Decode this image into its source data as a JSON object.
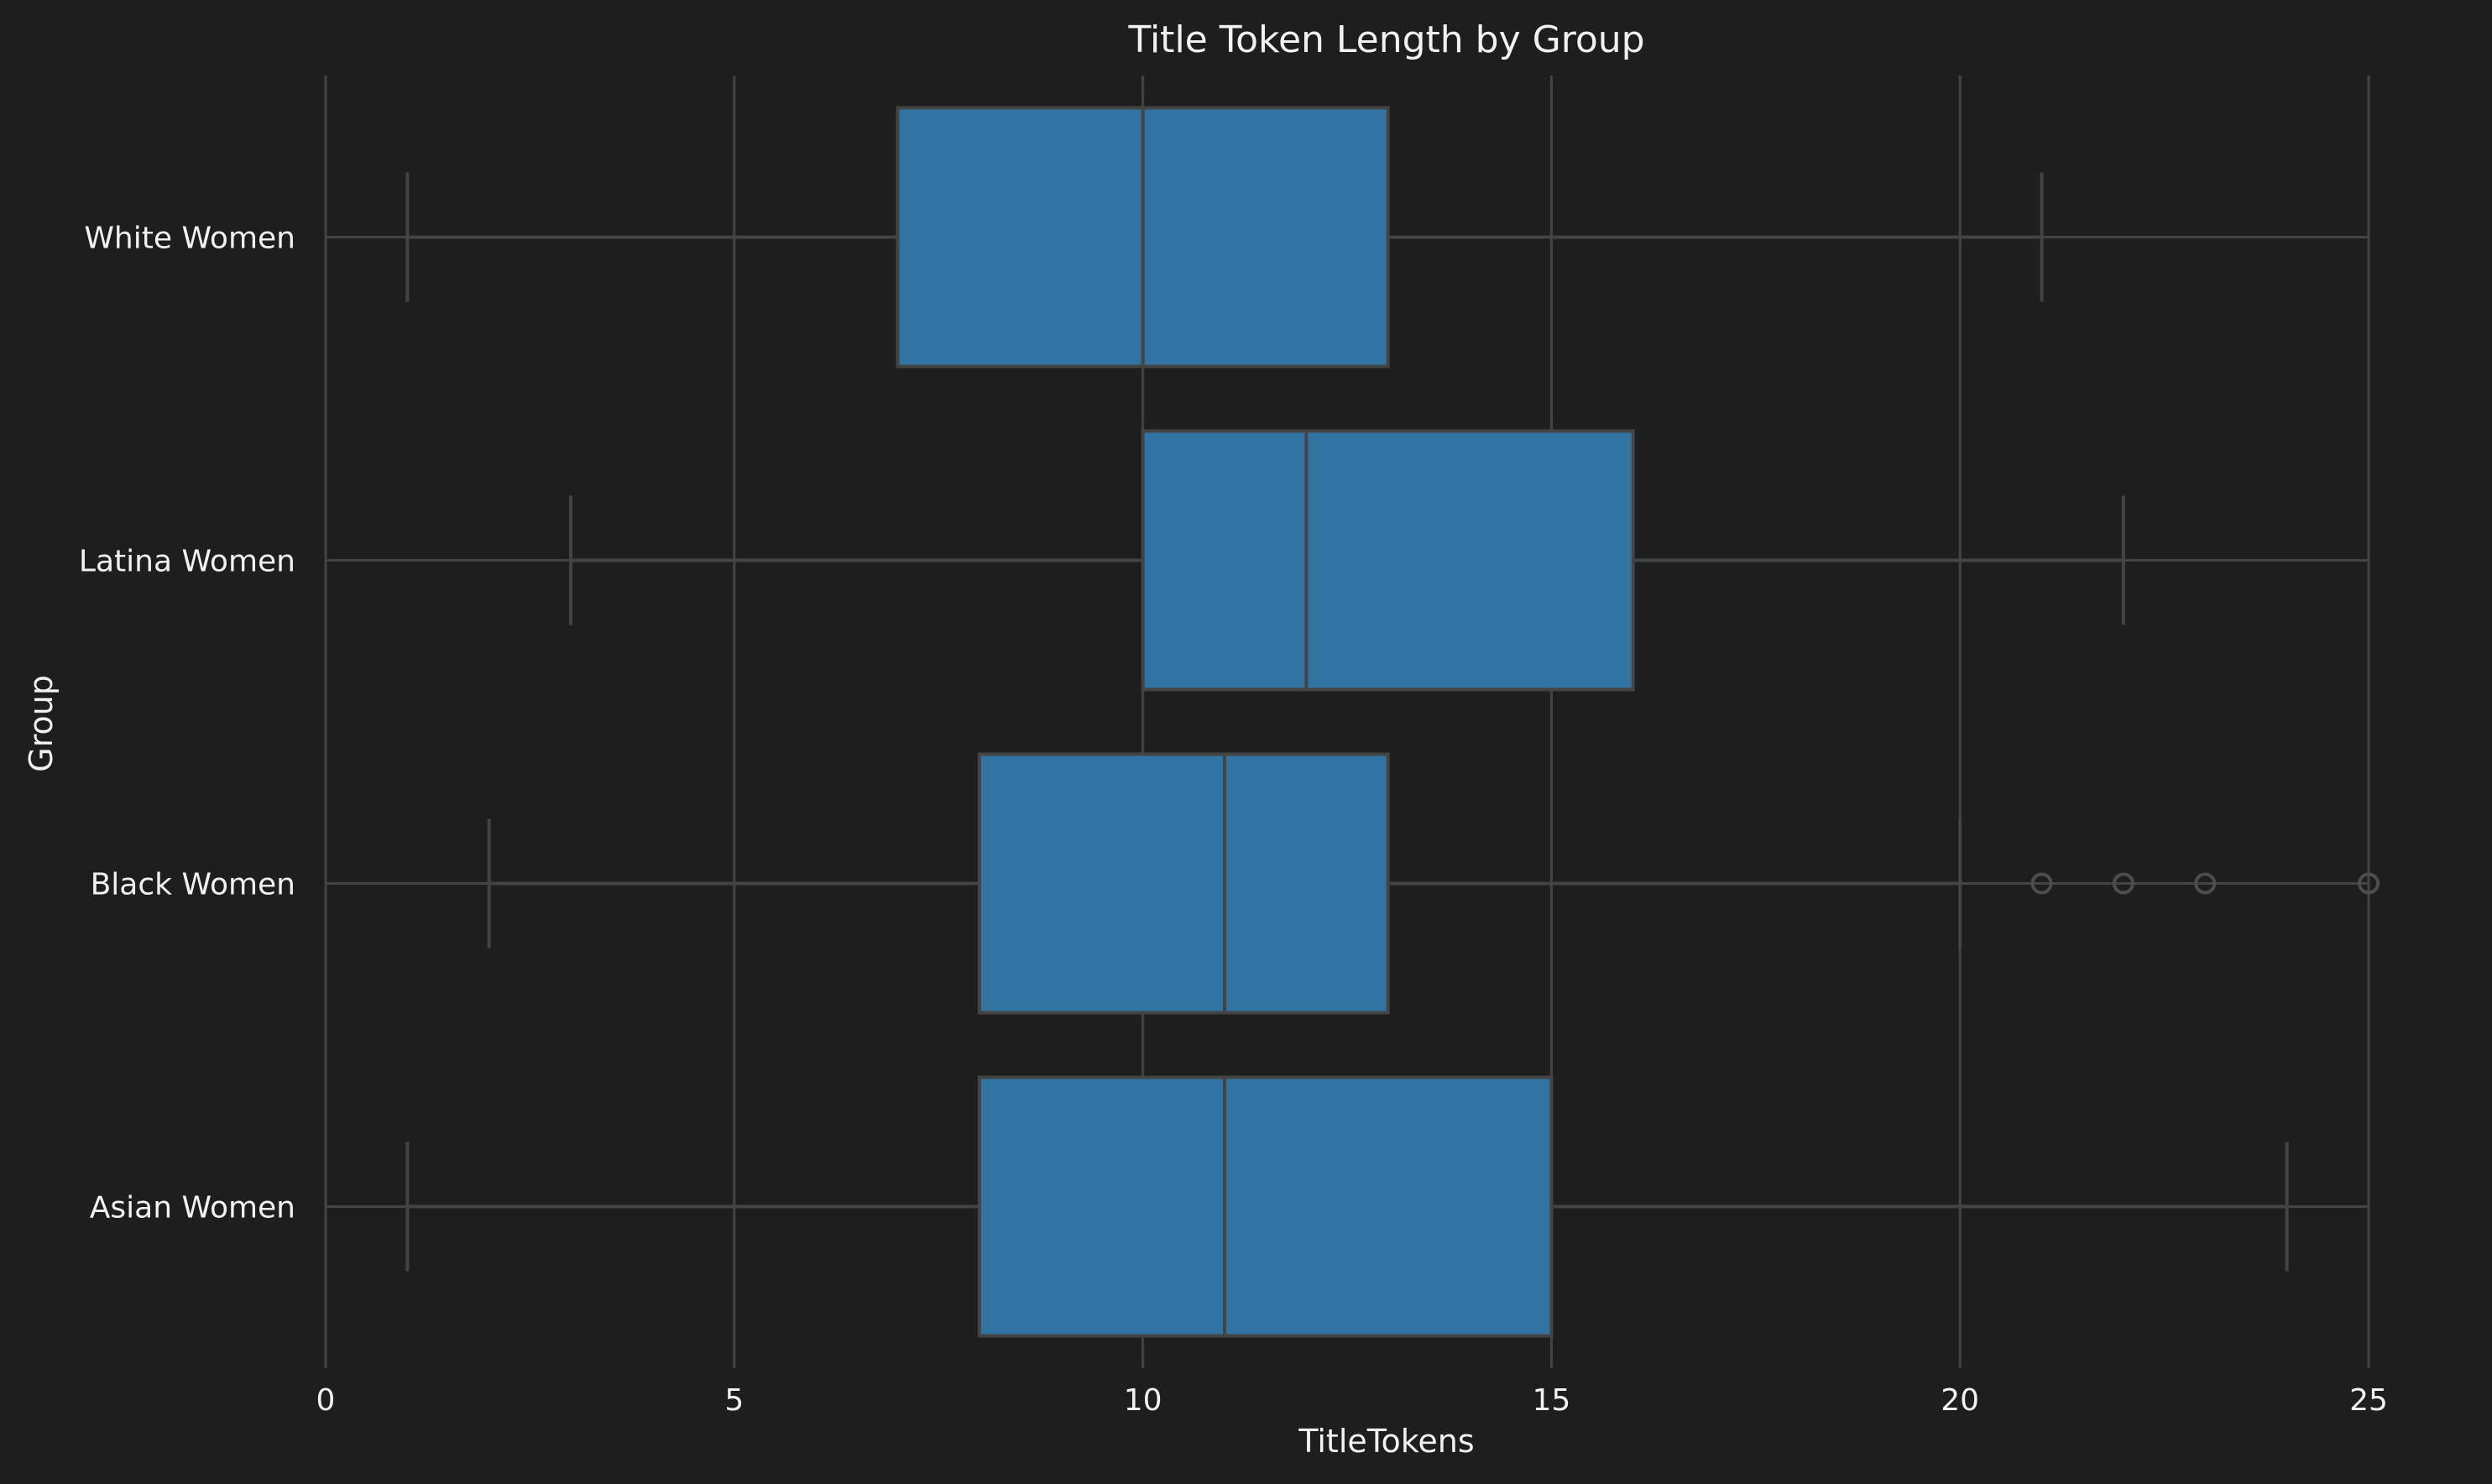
{
  "chart_data": {
    "type": "boxplot",
    "orientation": "horizontal",
    "title": "Title Token Length by Group",
    "xlabel": "TitleTokens",
    "ylabel": "Group",
    "xlim": [
      0,
      25
    ],
    "xticks": [
      0,
      5,
      10,
      15,
      20,
      25
    ],
    "grid": true,
    "box_color": "#3274a1",
    "background": "#1e1e1e",
    "categories": [
      "White Women",
      "Latina Women",
      "Black Women",
      "Asian Women"
    ],
    "boxes": [
      {
        "category": "White Women",
        "whisker_low": 1,
        "q1": 7,
        "median": 10,
        "q3": 13,
        "whisker_high": 21,
        "outliers": []
      },
      {
        "category": "Latina Women",
        "whisker_low": 3,
        "q1": 10,
        "median": 12,
        "q3": 16,
        "whisker_high": 22,
        "outliers": []
      },
      {
        "category": "Black Women",
        "whisker_low": 2,
        "q1": 8,
        "median": 11,
        "q3": 13,
        "whisker_high": 20,
        "outliers": [
          21,
          22,
          23,
          25
        ]
      },
      {
        "category": "Asian Women",
        "whisker_low": 1,
        "q1": 8,
        "median": 11,
        "q3": 15,
        "whisker_high": 24,
        "outliers": []
      }
    ]
  }
}
